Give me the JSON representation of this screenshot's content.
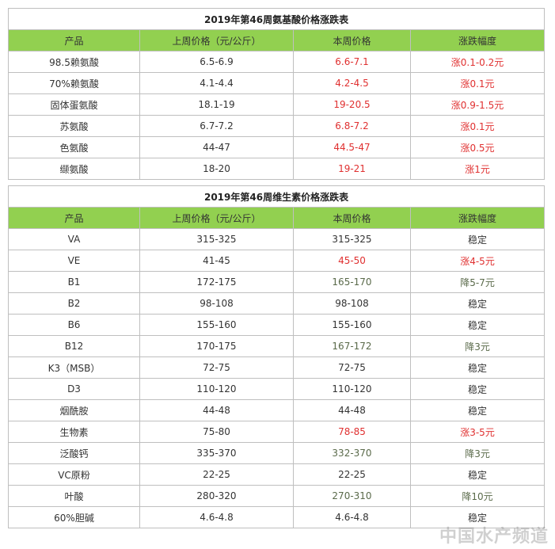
{
  "amino": {
    "title": "2019年第46周氨基酸价格涨跌表",
    "headers": [
      "产品",
      "上周价格（元/公斤）",
      "本周价格",
      "涨跌幅度"
    ],
    "rows": [
      {
        "product": "98.5赖氨酸",
        "last": "6.5-6.9",
        "current": "6.6-7.1",
        "change": "涨0.1-0.2元"
      },
      {
        "product": "70%赖氨酸",
        "last": "4.1-4.4",
        "current": "4.2-4.5",
        "change": "涨0.1元"
      },
      {
        "product": "固体蛋氨酸",
        "last": "18.1-19",
        "current": "19-20.5",
        "change": "涨0.9-1.5元"
      },
      {
        "product": "苏氨酸",
        "last": "6.7-7.2",
        "current": "6.8-7.2",
        "change": "涨0.1元"
      },
      {
        "product": "色氨酸",
        "last": "44-47",
        "current": "44.5-47",
        "change": "涨0.5元"
      },
      {
        "product": "缬氨酸",
        "last": "18-20",
        "current": "19-21",
        "change": "涨1元"
      }
    ]
  },
  "vitamin": {
    "title": "2019年第46周维生素价格涨跌表",
    "headers": [
      "产品",
      "上周价格（元/公斤）",
      "本周价格",
      "涨跌幅度"
    ],
    "rows": [
      {
        "product": "VA",
        "last": "315-325",
        "current": "315-325",
        "change": "稳定"
      },
      {
        "product": "VE",
        "last": "41-45",
        "current": "45-50",
        "change": "涨4-5元"
      },
      {
        "product": "B1",
        "last": "172-175",
        "current": "165-170",
        "change": "降5-7元"
      },
      {
        "product": "B2",
        "last": "98-108",
        "current": "98-108",
        "change": "稳定"
      },
      {
        "product": "B6",
        "last": "155-160",
        "current": "155-160",
        "change": "稳定"
      },
      {
        "product": "B12",
        "last": "170-175",
        "current": "167-172",
        "change": "降3元"
      },
      {
        "product": "K3（MSB）",
        "last": "72-75",
        "current": "72-75",
        "change": "稳定"
      },
      {
        "product": "D3",
        "last": "110-120",
        "current": "110-120",
        "change": "稳定"
      },
      {
        "product": "烟酰胺",
        "last": "44-48",
        "current": "44-48",
        "change": "稳定"
      },
      {
        "product": "生物素",
        "last": "75-80",
        "current": "78-85",
        "change": "涨3-5元"
      },
      {
        "product": "泛酸钙",
        "last": "335-370",
        "current": "332-370",
        "change": "降3元"
      },
      {
        "product": "VC原粉",
        "last": "22-25",
        "current": "22-25",
        "change": "稳定"
      },
      {
        "product": "叶酸",
        "last": "280-320",
        "current": "270-310",
        "change": "降10元"
      },
      {
        "product": "60%胆碱",
        "last": "4.6-4.8",
        "current": "4.6-4.8",
        "change": "稳定"
      }
    ]
  },
  "watermark": "中国水产频道",
  "colors": {
    "header_bg": "#92d050",
    "rise": "#e03030",
    "fall": "#5a6a4a"
  }
}
